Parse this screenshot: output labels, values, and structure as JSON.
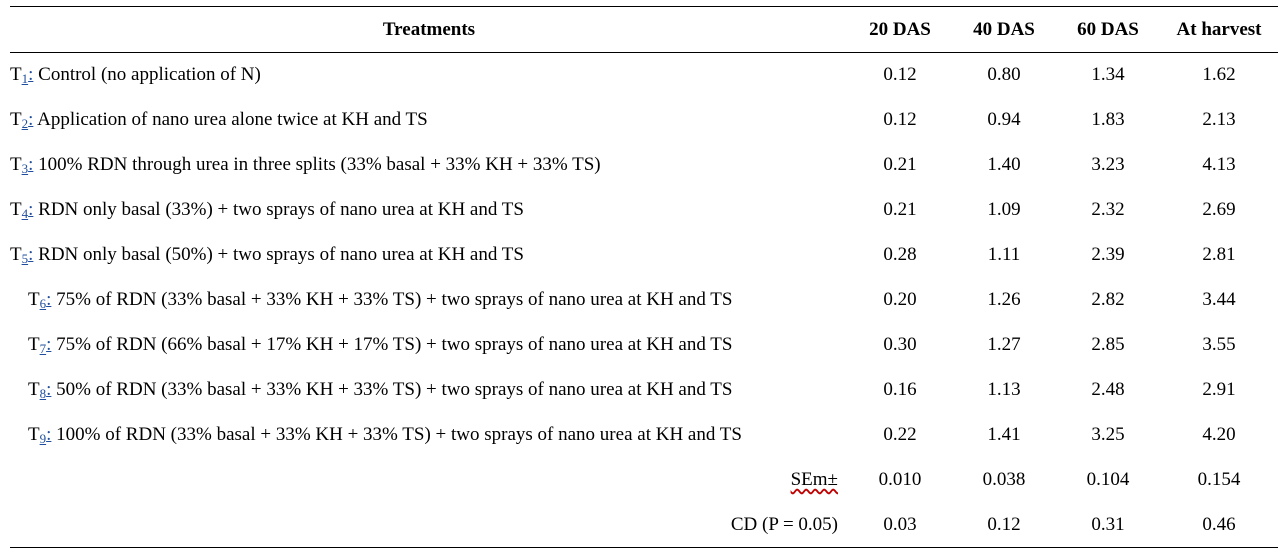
{
  "header": {
    "treatments": "Treatments",
    "d20": "20 DAS",
    "d40": "40 DAS",
    "d60": "60 DAS",
    "harvest": "At harvest"
  },
  "rows": [
    {
      "code": "T",
      "sub": "1",
      "colon": ":",
      "text": " Control (no application of N)",
      "d20": "0.12",
      "d40": "0.80",
      "d60": "1.34",
      "harvest": "1.62"
    },
    {
      "code": "T",
      "sub": "2",
      "colon": ":",
      "text": " Application of nano urea alone twice at KH and TS",
      "d20": "0.12",
      "d40": "0.94",
      "d60": "1.83",
      "harvest": "2.13"
    },
    {
      "code": "T",
      "sub": "3",
      "colon": ":",
      "text": " 100% RDN through urea in three splits (33% basal + 33% KH + 33% TS)",
      "d20": "0.21",
      "d40": "1.40",
      "d60": "3.23",
      "harvest": "4.13"
    },
    {
      "code": "T",
      "sub": "4",
      "colon": ":",
      "text": " RDN only basal (33%) + two sprays of nano urea at KH and TS",
      "d20": "0.21",
      "d40": "1.09",
      "d60": "2.32",
      "harvest": "2.69"
    },
    {
      "code": "T",
      "sub": "5",
      "colon": ":",
      "text": " RDN only basal (50%) + two sprays of nano urea at KH and TS",
      "d20": "0.28",
      "d40": "1.11",
      "d60": "2.39",
      "harvest": "2.81"
    },
    {
      "code": "T",
      "sub": "6",
      "colon": ":",
      "text": " 75% of RDN (33% basal + 33% KH + 33% TS) + two sprays of nano urea at KH and TS",
      "d20": "0.20",
      "d40": "1.26",
      "d60": "2.82",
      "harvest": "3.44"
    },
    {
      "code": "T",
      "sub": "7",
      "colon": ":",
      "text": " 75% of RDN (66% basal + 17% KH + 17% TS) + two sprays of nano urea at KH and TS",
      "d20": "0.30",
      "d40": "1.27",
      "d60": "2.85",
      "harvest": "3.55"
    },
    {
      "code": "T",
      "sub": "8",
      "colon": ":",
      "text": " 50% of RDN (33% basal + 33% KH + 33% TS) + two sprays of nano urea at KH and TS",
      "d20": "0.16",
      "d40": "1.13",
      "d60": "2.48",
      "harvest": "2.91"
    },
    {
      "code": "T",
      "sub": "9",
      "colon": ":",
      "text": " 100% of RDN (33% basal + 33% KH + 33% TS) + two sprays of nano urea at KH and TS",
      "d20": "0.22",
      "d40": "1.41",
      "d60": "3.25",
      "harvest": "4.20"
    }
  ],
  "stats": [
    {
      "label": "SEm±",
      "d20": "0.010",
      "d40": "0.038",
      "d60": "0.104",
      "harvest": "0.154"
    },
    {
      "label": "CD (P = 0.05)",
      "d20": "0.03",
      "d40": "0.12",
      "d60": "0.31",
      "harvest": "0.46"
    }
  ],
  "colors": {
    "link_blue": "#1f4e9e",
    "spellcheck_red": "#c00000"
  }
}
